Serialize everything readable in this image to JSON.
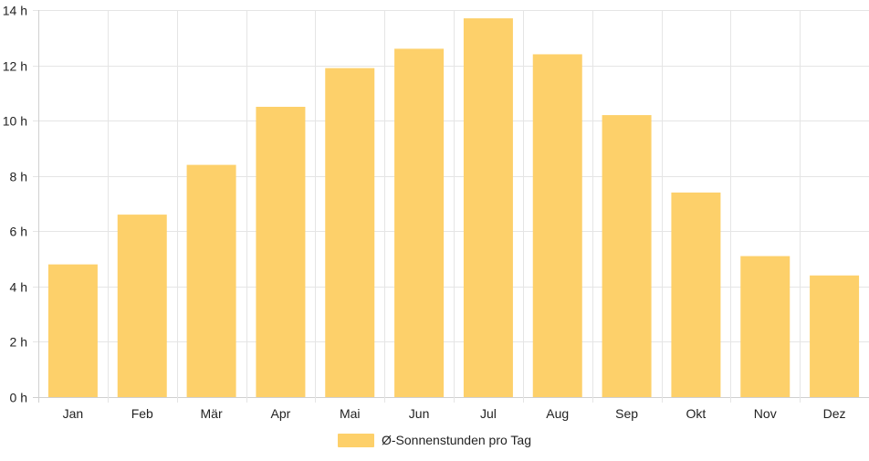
{
  "chart_data": {
    "type": "bar",
    "title": "",
    "xlabel": "",
    "ylabel": "",
    "categories": [
      "Jan",
      "Feb",
      "Mär",
      "Apr",
      "Mai",
      "Jun",
      "Jul",
      "Aug",
      "Sep",
      "Okt",
      "Nov",
      "Dez"
    ],
    "series": [
      {
        "name": "Ø-Sonnenstunden pro Tag",
        "values": [
          4.8,
          6.6,
          8.4,
          10.5,
          11.9,
          12.6,
          13.7,
          12.4,
          10.2,
          7.4,
          5.1,
          4.4
        ],
        "color": "#FDD06A"
      }
    ],
    "ylim": [
      0,
      14
    ],
    "yticks": [
      0,
      2,
      4,
      6,
      8,
      10,
      12,
      14
    ],
    "y_tick_suffix": " h",
    "grid": true,
    "legend_position": "bottom-center"
  },
  "colors": {
    "grid": "#e5e5e5",
    "axis": "#d0d0d0",
    "text": "#222222"
  }
}
